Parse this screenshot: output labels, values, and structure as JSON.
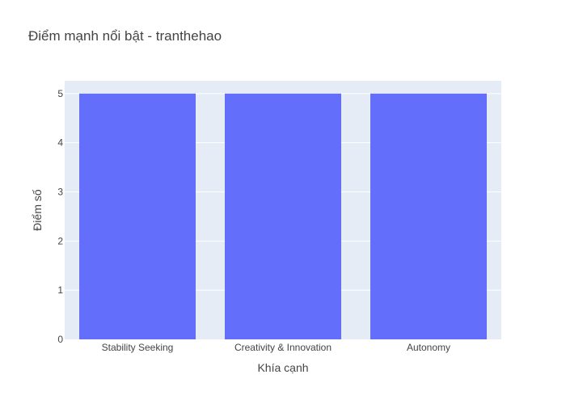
{
  "chart_data": {
    "type": "bar",
    "title": "Điểm mạnh nổi bật - tranthehao",
    "xlabel": "Khía cạnh",
    "ylabel": "Điểm số",
    "categories": [
      "Stability Seeking",
      "Creativity & Innovation",
      "Autonomy"
    ],
    "values": [
      5,
      5,
      5
    ],
    "ylim": [
      0,
      5.26
    ],
    "yticks": [
      0,
      1,
      2,
      3,
      4,
      5
    ],
    "grid": true,
    "legend": "none",
    "bar_color": "#636efa",
    "plot_bg": "#e5ecf6"
  }
}
